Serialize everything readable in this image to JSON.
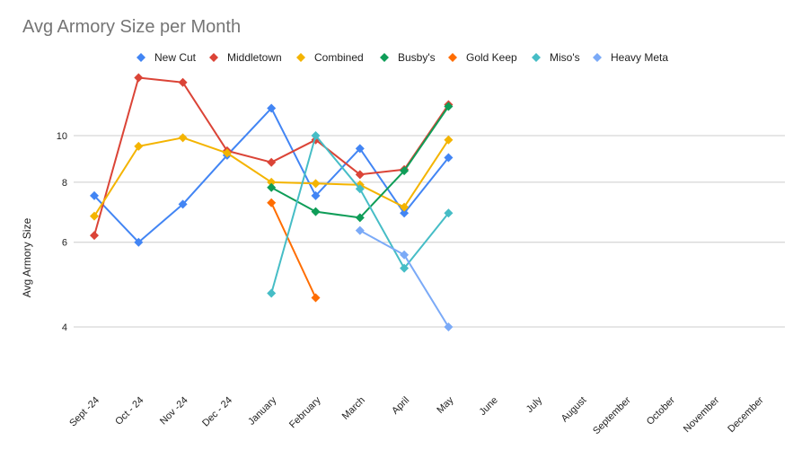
{
  "chart_data": {
    "type": "line",
    "title": "Avg Armory Size per Month",
    "xlabel": "",
    "ylabel": "Avg Armory Size",
    "yscale": "log",
    "ylim": [
      3,
      13
    ],
    "yticks": [
      4,
      6,
      8,
      10
    ],
    "grid": true,
    "legend_position": "top",
    "categories": [
      "Sept -24",
      "Oct - 24",
      "Nov -24",
      "Dec - 24",
      "January",
      "February",
      "March",
      "April",
      "May",
      "June",
      "July",
      "August",
      "September",
      "October",
      "November",
      "December"
    ],
    "series": [
      {
        "name": "New Cut",
        "color": "#4285f4",
        "values": [
          7.5,
          6.0,
          7.2,
          9.1,
          11.4,
          7.5,
          9.4,
          6.9,
          9.0,
          null,
          null,
          null,
          null,
          null,
          null,
          null
        ]
      },
      {
        "name": "Middletown",
        "color": "#db4437",
        "values": [
          6.2,
          13.2,
          12.9,
          9.3,
          8.8,
          9.8,
          8.3,
          8.5,
          11.6,
          null,
          null,
          null,
          null,
          null,
          null,
          null
        ]
      },
      {
        "name": "Combined",
        "color": "#f4b400",
        "values": [
          6.8,
          9.5,
          9.9,
          9.2,
          8.0,
          7.95,
          7.9,
          7.1,
          9.8,
          null,
          null,
          null,
          null,
          null,
          null,
          null
        ]
      },
      {
        "name": "Busby's",
        "color": "#0f9d58",
        "values": [
          null,
          null,
          null,
          null,
          7.8,
          6.95,
          6.75,
          8.45,
          11.5,
          null,
          null,
          null,
          null,
          null,
          null,
          null
        ]
      },
      {
        "name": "Gold Keep",
        "color": "#ff6d01",
        "values": [
          null,
          null,
          null,
          null,
          7.25,
          4.6,
          null,
          null,
          null,
          null,
          null,
          null,
          null,
          null,
          null,
          null
        ]
      },
      {
        "name": "Miso's",
        "color": "#46bdc6",
        "values": [
          null,
          null,
          null,
          null,
          4.7,
          10.0,
          7.75,
          5.3,
          6.9,
          null,
          null,
          null,
          null,
          null,
          null,
          null
        ]
      },
      {
        "name": "Heavy Meta",
        "color": "#7baaf7",
        "values": [
          null,
          null,
          null,
          null,
          null,
          null,
          6.35,
          5.65,
          4.0,
          null,
          null,
          null,
          null,
          null,
          null,
          null
        ]
      }
    ]
  }
}
